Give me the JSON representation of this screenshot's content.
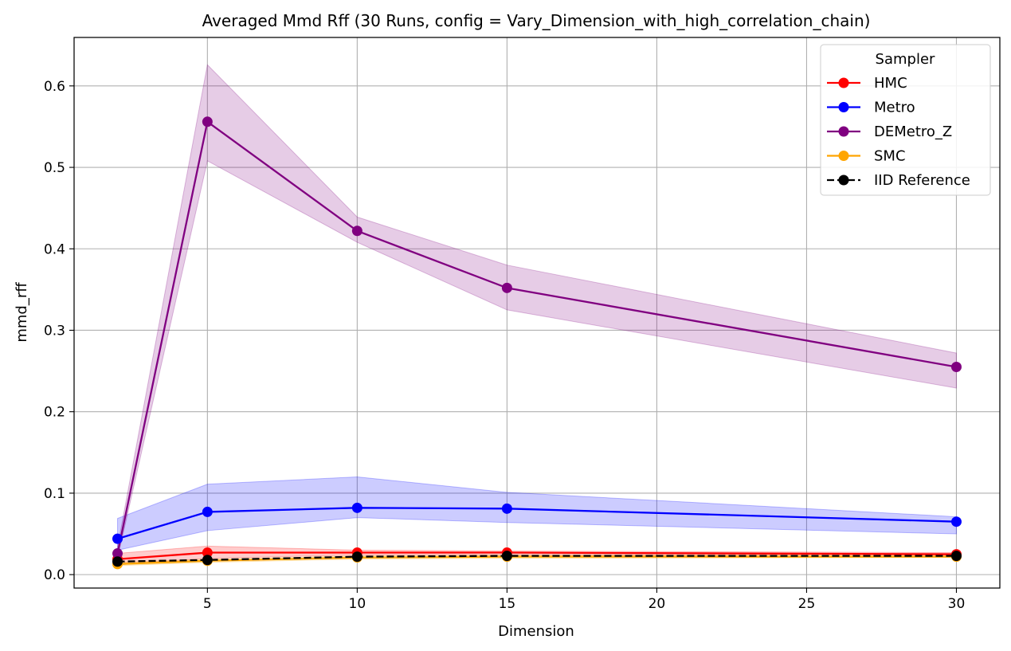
{
  "chart_data": {
    "type": "line",
    "title": "Averaged Mmd Rff (30 Runs, config = Vary_Dimension_with_high_correlation_chain)",
    "xlabel": "Dimension",
    "ylabel": "mmd_rff",
    "xlim": [
      0.55,
      31.45
    ],
    "ylim": [
      -0.0165,
      0.6595
    ],
    "xticks": [
      5,
      10,
      15,
      20,
      25,
      30
    ],
    "yticks": [
      0.0,
      0.1,
      0.2,
      0.3,
      0.4,
      0.5,
      0.6
    ],
    "xtick_labels": [
      "5",
      "10",
      "15",
      "20",
      "25",
      "30"
    ],
    "ytick_labels": [
      "0.0",
      "0.1",
      "0.2",
      "0.3",
      "0.4",
      "0.5",
      "0.6"
    ],
    "grid": true,
    "legend": {
      "title": "Sampler",
      "placement": "top-right"
    },
    "x": [
      2,
      5,
      10,
      15,
      30
    ],
    "series": [
      {
        "name": "HMC",
        "color": "#ff0000",
        "band_color": "#ff0000",
        "line_style": "solid",
        "values": [
          0.019,
          0.027,
          0.027,
          0.027,
          0.025
        ],
        "lower": [
          0.012,
          0.02,
          0.024,
          0.024,
          0.022
        ],
        "upper": [
          0.026,
          0.035,
          0.03,
          0.029,
          0.027
        ]
      },
      {
        "name": "Metro",
        "color": "#0000ff",
        "band_color": "#0000ff",
        "line_style": "solid",
        "values": [
          0.044,
          0.077,
          0.082,
          0.081,
          0.065
        ],
        "lower": [
          0.03,
          0.054,
          0.07,
          0.064,
          0.05
        ],
        "upper": [
          0.069,
          0.111,
          0.12,
          0.101,
          0.071
        ]
      },
      {
        "name": "DEMetro_Z",
        "color": "#800080",
        "band_color": "#800080",
        "line_style": "solid",
        "values": [
          0.026,
          0.556,
          0.422,
          0.352,
          0.255
        ],
        "lower": [
          0.02,
          0.508,
          0.408,
          0.325,
          0.229
        ],
        "upper": [
          0.034,
          0.626,
          0.439,
          0.38,
          0.272
        ]
      },
      {
        "name": "SMC",
        "color": "#ffa500",
        "band_color": "#ffa500",
        "line_style": "solid",
        "values": [
          0.013,
          0.017,
          0.021,
          0.022,
          0.022
        ],
        "lower": [
          0.011,
          0.015,
          0.019,
          0.02,
          0.021
        ],
        "upper": [
          0.015,
          0.019,
          0.023,
          0.024,
          0.024
        ]
      },
      {
        "name": "IID Reference",
        "color": "#000000",
        "line_style": "dashed",
        "values": [
          0.016,
          0.018,
          0.022,
          0.023,
          0.023
        ]
      }
    ]
  }
}
